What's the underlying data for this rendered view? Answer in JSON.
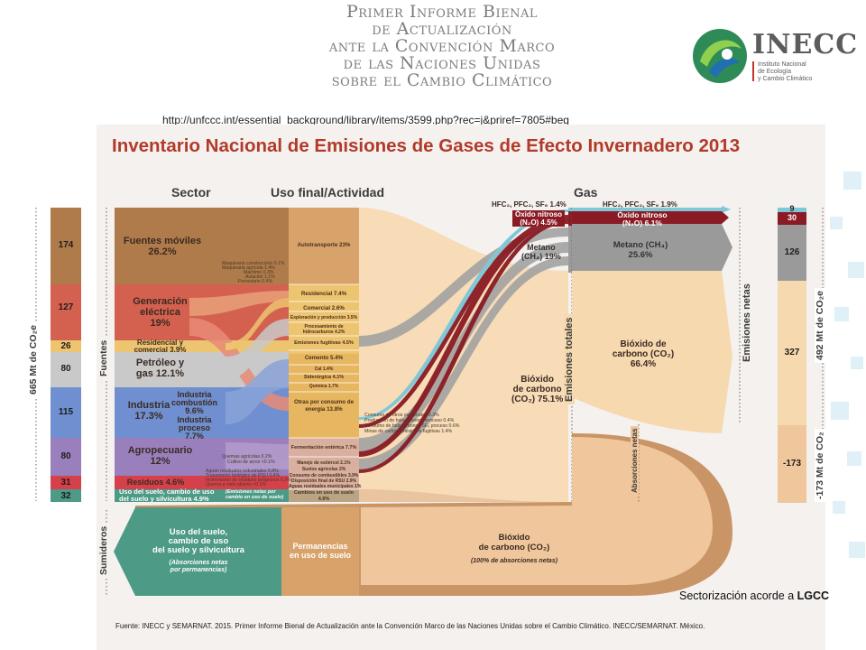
{
  "header": {
    "title_lines": [
      "Primer Informe Bienal",
      "de Actualización",
      "ante la Convención Marco",
      "de las Naciones Unidas",
      "sobre el Cambio Climático"
    ],
    "url": "http://unfccc.int/essential_background/library/items/3599.php?rec=j&priref=7805#beg",
    "logo_name": "INECC",
    "logo_sub": [
      "Instituto Nacional",
      "de Ecología",
      "y Cambio Climático"
    ]
  },
  "diagram": {
    "title": "Inventario Nacional de Emisiones de Gases de Efecto Invernadero 2013",
    "col_sector": "Sector",
    "col_uso": "Uso final/Actividad",
    "col_gas": "Gas",
    "left_axis": "665 Mt de CO₂e",
    "fuentes": "Fuentes",
    "sumideros": "Sumideros",
    "emisiones_totales": "Emisiones totales",
    "emisiones_netas": "Emisiones netas",
    "absorciones_netas": "Absorciones netas",
    "right_axis_top": "492 Mt de CO₂e",
    "right_axis_bottom": "-173 Mt de CO₂",
    "left_values": [
      "174",
      "127",
      "26",
      "80",
      "115",
      "80",
      "31",
      "32"
    ],
    "right_values": [
      "9",
      "30",
      "126",
      "327",
      "-173"
    ],
    "sectors": {
      "fuentes_moviles": [
        "Fuentes móviles",
        "26.2%"
      ],
      "generacion": [
        "Generación",
        "eléctrica",
        "19%"
      ],
      "residencial": [
        "Residencial y",
        "comercial 3.9%"
      ],
      "petroleo": [
        "Petróleo y",
        "gas 12.1%"
      ],
      "industria": [
        "Industria",
        "17.3%"
      ],
      "industria_comb": [
        "Industria",
        "combustión",
        "9.6%"
      ],
      "industria_proc": [
        "Industria",
        "proceso",
        "7.7%"
      ],
      "agropecuario": [
        "Agropecuario",
        "12%"
      ],
      "residuos": "Residuos 4.6%",
      "uso_suelo": [
        "Uso del suelo, cambio de uso",
        "del suelo y silvicultura 4.9%"
      ],
      "uso_suelo_note": [
        "(Emisiones netas por",
        "cambio en uso de suelo)"
      ]
    },
    "sector_small": [
      "Maquinaria construcción 0.1%",
      "Maquinaria agrícola 1.4%",
      "Marítimo 0.3%",
      "Aviación 1.1%",
      "Ferroviario 0.4%",
      "Quemas agrícolas 0.2%",
      "Cultivo de arroz <0.1%",
      "Aguas residuales industriales 0.8%",
      "Tratamiento biológico de RSU 0.4%",
      "Incineración de residuos peligrosos 0.2%",
      "Quema a cielo abierto <0.1%"
    ],
    "uses": [
      "Autotransporte 23%",
      "Residencial 7.4%",
      "Comercial 2.6%",
      "Exploración y producción 3.5%",
      "Procesamiento de hidrocarburos 4.2%",
      "Emisiones fugitivas 4.5%",
      "Cemento 5.4%",
      "Cal 1.4%",
      "Siderúrgica 4.1%",
      "Química 1.7%",
      "Otras por consumo de energía 13.8%",
      "Fermentación entérica 7.7%",
      "Manejo de estiércol 2.1%",
      "Suelos agrícolas 2%",
      "Consumo de combustibles 3.9%",
      "Disposición final de RSU 2.9%",
      "Aguas residuales municipales 1%",
      "Cambios en uso de suelo 4.9%"
    ],
    "mid_small": [
      "Consumo de otros carbonatos 0.3%",
      "Producción de halocarbonos-proceso 0.4%",
      "Consumo de halocarbonos SF₆ proceso 0.6%",
      "Minas de carbón-emisiones fugitivas 1.4%"
    ],
    "gas_left": {
      "hfc": "HFC₂, PFC₂, SF₆ 1.4%",
      "n2o": [
        "Óxido nitroso",
        "(N₂O) 4.5%"
      ],
      "ch4": [
        "Metano",
        "(CH₄) 19%"
      ],
      "co2": [
        "Bióxido",
        "de carbono",
        "(CO₂) 75.1%"
      ]
    },
    "gas_right": {
      "hfc": "HFC₂, PFC₂, SF₆ 1.9%",
      "n2o": [
        "Óxido nitroso",
        "(N₂O) 6.1%"
      ],
      "ch4": [
        "Metano (CH₄)",
        "25.6%"
      ],
      "co2": [
        "Bióxido de",
        "carbono (CO₂)",
        "66.4%"
      ]
    },
    "bottom": {
      "uso": [
        "Uso del suelo,",
        "cambio de uso",
        "del suelo y silvicultura"
      ],
      "uso_note": [
        "(Absorciones netas",
        "por permanencias)"
      ],
      "perm": [
        "Permanencias",
        "en uso de suelo"
      ],
      "co2": [
        "Bióxido",
        "de carbono (CO₂)"
      ],
      "co2_note": "(100% de absorciones netas)"
    },
    "source": "Fuente: INECC y SEMARNAT. 2015. Primer Informe Bienal de Actualización ante la Convención Marco de las Naciones Unidas sobre el Cambio Climático. INECC/SEMARNAT. México."
  },
  "footnote": {
    "text": "Sectorización acorde a ",
    "bold": "LGCC"
  },
  "colors": {
    "title_red": "#b23a2a",
    "brown": "#b07b4a",
    "red": "#d4604f",
    "yellow": "#edc470",
    "grey": "#c9c9c9",
    "blue": "#6f8fd0",
    "purple": "#9a7fbd",
    "green_teal": "#4d9a86",
    "peach": "#f7d9b0",
    "maroon": "#8a1b24",
    "metano_grey": "#9a9a9a",
    "cyan": "#7fc8d8"
  }
}
